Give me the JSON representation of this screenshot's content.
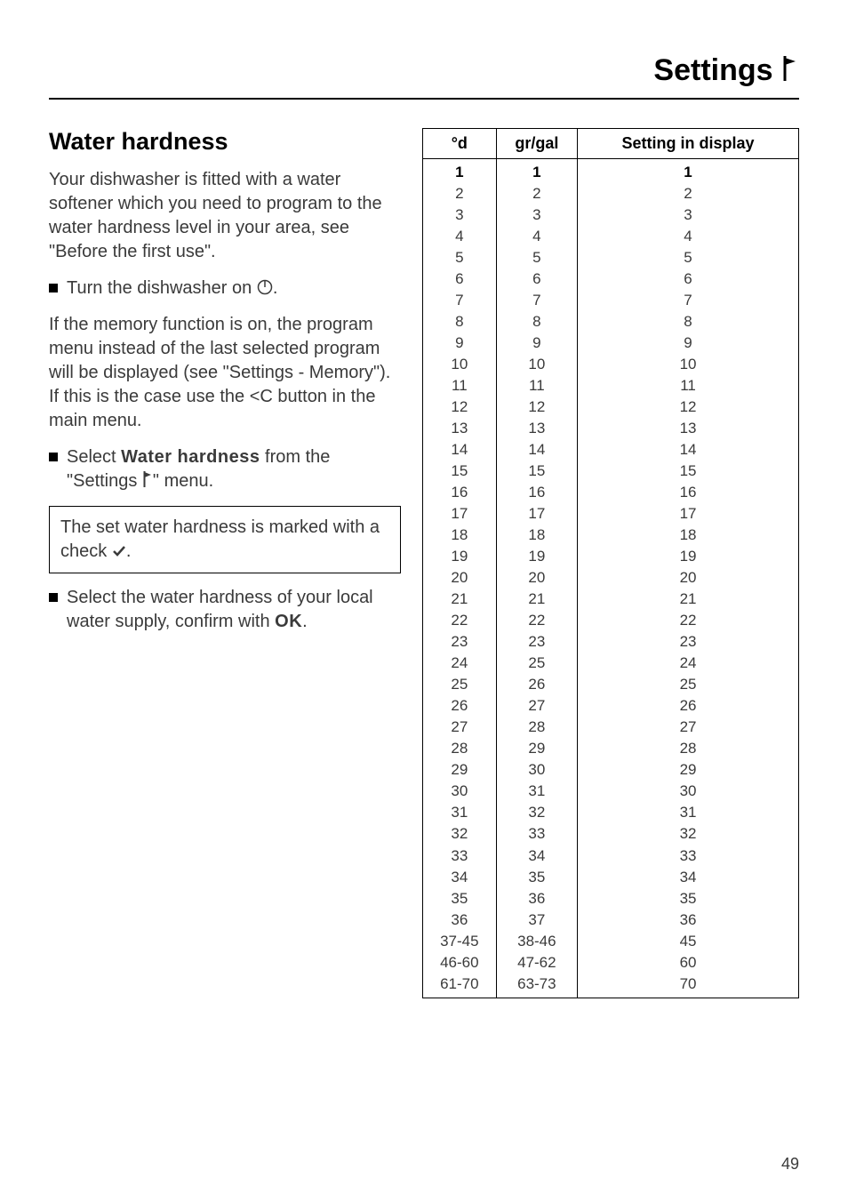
{
  "header": {
    "title": "Settings"
  },
  "section_title": "Water hardness",
  "para1": "Your dishwasher is fitted with a water softener which you need to program to the water hardness level in your area, see \"Before the first use\".",
  "bullet1_a": "Turn the dishwasher on ",
  "bullet1_b": ".",
  "para2": "If the memory function is on, the program menu instead of the last selected program will be displayed (see \"Settings - Memory\").  If this is the case use the ",
  "para2_code": "<C",
  "para2_end": " button in the main menu.",
  "bullet2_a": "Select ",
  "bullet2_pixel": "Water hardness",
  "bullet2_b": " from the \"Settings ",
  "bullet2_c": "\" menu.",
  "box_a": "The set water hardness is marked with a check ",
  "box_b": ".",
  "bullet3_a": "Select the water hardness of your local water supply, confirm with ",
  "bullet3_pixel": "OK",
  "bullet3_b": ".",
  "table": {
    "headers": {
      "c1": "°d",
      "c2": "gr/gal",
      "c3": "Setting in display"
    },
    "rows": [
      {
        "d": "1",
        "g": "1",
        "s": "1"
      },
      {
        "d": "2",
        "g": "2",
        "s": "2"
      },
      {
        "d": "3",
        "g": "3",
        "s": "3"
      },
      {
        "d": "4",
        "g": "4",
        "s": "4"
      },
      {
        "d": "5",
        "g": "5",
        "s": "5"
      },
      {
        "d": "6",
        "g": "6",
        "s": "6"
      },
      {
        "d": "7",
        "g": "7",
        "s": "7"
      },
      {
        "d": "8",
        "g": "8",
        "s": "8"
      },
      {
        "d": "9",
        "g": "9",
        "s": "9"
      },
      {
        "d": "10",
        "g": "10",
        "s": "10"
      },
      {
        "d": "11",
        "g": "11",
        "s": "11"
      },
      {
        "d": "12",
        "g": "12",
        "s": "12"
      },
      {
        "d": "13",
        "g": "13",
        "s": "13"
      },
      {
        "d": "14",
        "g": "14",
        "s": "14"
      },
      {
        "d": "15",
        "g": "15",
        "s": "15"
      },
      {
        "d": "16",
        "g": "16",
        "s": "16"
      },
      {
        "d": "17",
        "g": "17",
        "s": "17"
      },
      {
        "d": "18",
        "g": "18",
        "s": "18"
      },
      {
        "d": "19",
        "g": "19",
        "s": "19"
      },
      {
        "d": "20",
        "g": "20",
        "s": "20"
      },
      {
        "d": "21",
        "g": "21",
        "s": "21"
      },
      {
        "d": "22",
        "g": "22",
        "s": "22"
      },
      {
        "d": "23",
        "g": "23",
        "s": "23"
      },
      {
        "d": "24",
        "g": "25",
        "s": "24"
      },
      {
        "d": "25",
        "g": "26",
        "s": "25"
      },
      {
        "d": "26",
        "g": "27",
        "s": "26"
      },
      {
        "d": "27",
        "g": "28",
        "s": "27"
      },
      {
        "d": "28",
        "g": "29",
        "s": "28"
      },
      {
        "d": "29",
        "g": "30",
        "s": "29"
      },
      {
        "d": "30",
        "g": "31",
        "s": "30"
      },
      {
        "d": "31",
        "g": "32",
        "s": "31"
      },
      {
        "d": "32",
        "g": "33",
        "s": "32"
      },
      {
        "d": "33",
        "g": "34",
        "s": "33"
      },
      {
        "d": "34",
        "g": "35",
        "s": "34"
      },
      {
        "d": "35",
        "g": "36",
        "s": "35"
      },
      {
        "d": "36",
        "g": "37",
        "s": "36"
      },
      {
        "d": "37-45",
        "g": "38-46",
        "s": "45"
      },
      {
        "d": "46-60",
        "g": "47-62",
        "s": "60"
      },
      {
        "d": "61-70",
        "g": "63-73",
        "s": "70"
      }
    ]
  },
  "page_number": "49",
  "colors": {
    "text": "#3a3a3a",
    "border": "#000000",
    "background": "#ffffff"
  }
}
